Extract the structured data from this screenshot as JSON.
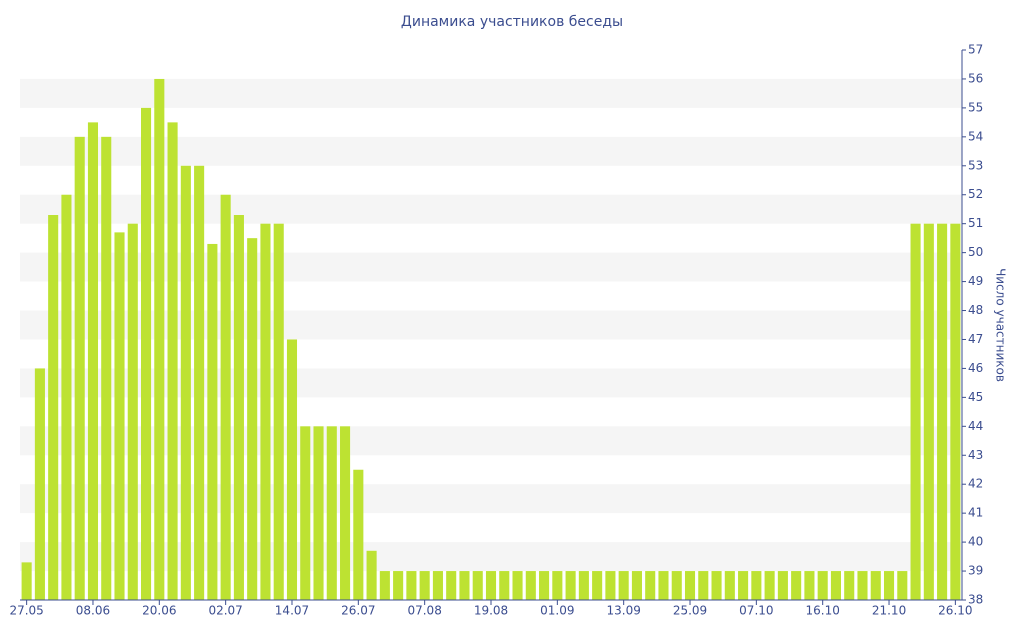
{
  "chart_data": {
    "type": "bar",
    "title": "Динамика участников беседы",
    "y_label": "Число участников",
    "categories": [
      "27.05",
      null,
      null,
      null,
      null,
      "08.06",
      null,
      null,
      null,
      null,
      "20.06",
      null,
      null,
      null,
      null,
      "02.07",
      null,
      null,
      null,
      null,
      "14.07",
      null,
      null,
      null,
      null,
      "26.07",
      null,
      null,
      null,
      null,
      "07.08",
      null,
      null,
      null,
      null,
      "19.08",
      null,
      null,
      null,
      null,
      "01.09",
      null,
      null,
      null,
      null,
      "13.09",
      null,
      null,
      null,
      null,
      "25.09",
      null,
      null,
      null,
      null,
      "07.10",
      null,
      null,
      null,
      null,
      "16.10",
      null,
      null,
      null,
      null,
      "21.10",
      null,
      null,
      null,
      null,
      "26.10"
    ],
    "values": [
      39.3,
      46,
      51.3,
      52,
      54,
      54.5,
      54,
      50.7,
      51,
      55,
      56,
      54.5,
      53,
      53,
      50.3,
      52,
      51.3,
      50.5,
      51,
      51,
      47,
      44,
      44,
      44,
      44,
      42.5,
      39.7,
      39,
      39,
      39,
      39,
      39,
      39,
      39,
      39,
      39,
      39,
      39,
      39,
      39,
      39,
      39,
      39,
      39,
      39,
      39,
      39,
      39,
      39,
      39,
      39,
      39,
      39,
      39,
      39,
      39,
      39,
      39,
      39,
      39,
      39,
      39,
      39,
      39,
      39,
      39,
      39,
      51,
      51,
      51,
      51
    ],
    "color": "#bde232",
    "ylim": [
      38,
      57
    ],
    "yticks": [
      38,
      39,
      40,
      41,
      42,
      43,
      44,
      45,
      46,
      47,
      48,
      49,
      50,
      51,
      52,
      53,
      54,
      55,
      56,
      57
    ],
    "y_axis_side": "right",
    "grid": true
  }
}
